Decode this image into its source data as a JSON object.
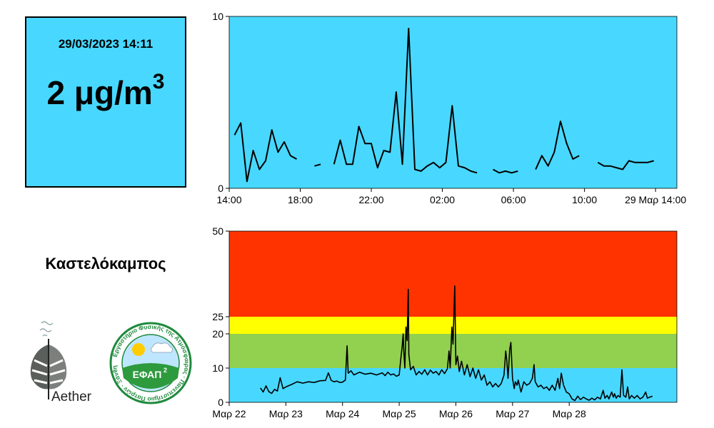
{
  "reading": {
    "timestamp": "29/03/2023 14:11",
    "value": "2 μg/m",
    "unit_exponent": "3"
  },
  "station": "Καστελόκαμπος",
  "logos": {
    "aether": "Aether",
    "efap": "ΕΦΑΠ",
    "efap_exponent": "2",
    "efap_ring_text": "Εργαστήριο Φυσικής της Ατμόσφαιρας · Πανεπιστήμιο Πατρών · Ξάνθη"
  },
  "colors": {
    "plot_bg": "#48d8ff",
    "line": "#000000",
    "band_good": "#48d8ff",
    "band_fair": "#92d050",
    "band_moderate": "#ffff00",
    "band_poor": "#ff3300"
  },
  "chart_data": [
    {
      "type": "line",
      "title": "",
      "xlabel": "",
      "ylabel": "",
      "x_unit": "hours since 28/03 14:00",
      "xlim": [
        0,
        25.2
      ],
      "ylim": [
        0,
        10
      ],
      "y_ticks": [
        "0",
        "10"
      ],
      "x_ticks": [
        {
          "x": 0,
          "label": "14:00"
        },
        {
          "x": 4,
          "label": "18:00"
        },
        {
          "x": 8,
          "label": "22:00"
        },
        {
          "x": 12,
          "label": "02:00"
        },
        {
          "x": 16,
          "label": "06:00"
        },
        {
          "x": 20,
          "label": "10:00"
        },
        {
          "x": 24,
          "label": "29 Μαρ 14:00"
        }
      ],
      "series": [
        {
          "segments": [
            [
              [
                0.3,
                3.1
              ],
              [
                0.65,
                3.8
              ],
              [
                1.0,
                0.4
              ],
              [
                1.35,
                2.2
              ],
              [
                1.7,
                1.1
              ],
              [
                2.05,
                1.6
              ],
              [
                2.4,
                3.4
              ],
              [
                2.75,
                2.1
              ],
              [
                3.1,
                2.7
              ],
              [
                3.45,
                1.9
              ],
              [
                3.8,
                1.7
              ]
            ],
            [
              [
                4.8,
                1.3
              ],
              [
                5.15,
                1.4
              ]
            ],
            [
              [
                5.9,
                1.4
              ],
              [
                6.25,
                2.8
              ],
              [
                6.6,
                1.4
              ],
              [
                6.95,
                1.4
              ],
              [
                7.3,
                3.6
              ],
              [
                7.65,
                2.6
              ],
              [
                8.0,
                2.6
              ],
              [
                8.35,
                1.2
              ],
              [
                8.7,
                2.2
              ],
              [
                9.05,
                2.1
              ],
              [
                9.4,
                5.6
              ],
              [
                9.75,
                1.4
              ],
              [
                10.1,
                9.3
              ],
              [
                10.45,
                1.1
              ],
              [
                10.8,
                1.0
              ],
              [
                11.15,
                1.3
              ],
              [
                11.5,
                1.5
              ],
              [
                11.85,
                1.2
              ],
              [
                12.2,
                1.5
              ],
              [
                12.55,
                4.8
              ],
              [
                12.9,
                1.3
              ],
              [
                13.25,
                1.2
              ],
              [
                13.6,
                1.0
              ],
              [
                13.95,
                0.9
              ]
            ],
            [
              [
                14.85,
                1.1
              ],
              [
                15.2,
                0.9
              ],
              [
                15.55,
                1.0
              ],
              [
                15.9,
                0.9
              ],
              [
                16.25,
                1.0
              ]
            ],
            [
              [
                17.25,
                1.1
              ],
              [
                17.6,
                1.9
              ],
              [
                17.95,
                1.3
              ],
              [
                18.3,
                2.1
              ],
              [
                18.65,
                3.9
              ],
              [
                19.0,
                2.6
              ],
              [
                19.35,
                1.7
              ],
              [
                19.7,
                1.9
              ]
            ],
            [
              [
                20.75,
                1.5
              ],
              [
                21.1,
                1.3
              ],
              [
                21.45,
                1.3
              ],
              [
                21.8,
                1.2
              ],
              [
                22.15,
                1.1
              ],
              [
                22.5,
                1.6
              ],
              [
                22.85,
                1.5
              ],
              [
                23.2,
                1.5
              ],
              [
                23.55,
                1.5
              ],
              [
                23.9,
                1.6
              ]
            ]
          ]
        }
      ]
    },
    {
      "type": "line",
      "title": "",
      "xlabel": "",
      "ylabel": "",
      "x_unit": "days since Μαρ 22 00:00",
      "xlim": [
        0,
        7.9
      ],
      "ylim": [
        0,
        50
      ],
      "y_ticks": [
        0,
        10,
        20,
        25,
        50
      ],
      "x_ticks": [
        {
          "x": 0,
          "label": "Μαρ 22"
        },
        {
          "x": 1,
          "label": "Μαρ 23"
        },
        {
          "x": 2,
          "label": "Μαρ 24"
        },
        {
          "x": 3,
          "label": "Μαρ 25"
        },
        {
          "x": 4,
          "label": "Μαρ 26"
        },
        {
          "x": 5,
          "label": "Μαρ 27"
        },
        {
          "x": 6,
          "label": "Μαρ 28"
        }
      ],
      "bands": [
        {
          "from": 0,
          "to": 10,
          "color": "#48d8ff"
        },
        {
          "from": 10,
          "to": 20,
          "color": "#92d050"
        },
        {
          "from": 20,
          "to": 25,
          "color": "#ffff00"
        },
        {
          "from": 25,
          "to": 50,
          "color": "#ff3300"
        }
      ],
      "series": [
        {
          "values_xy": [
            [
              0.55,
              4.2
            ],
            [
              0.6,
              3.0
            ],
            [
              0.65,
              4.8
            ],
            [
              0.7,
              3.1
            ],
            [
              0.75,
              2.6
            ],
            [
              0.8,
              3.8
            ],
            [
              0.85,
              3.3
            ],
            [
              0.9,
              7.2
            ],
            [
              0.95,
              4.0
            ],
            [
              1.0,
              4.5
            ],
            [
              1.1,
              5.2
            ],
            [
              1.2,
              6.0
            ],
            [
              1.3,
              5.6
            ],
            [
              1.4,
              6.0
            ],
            [
              1.5,
              5.8
            ],
            [
              1.6,
              6.3
            ],
            [
              1.7,
              6.4
            ],
            [
              1.75,
              8.6
            ],
            [
              1.8,
              6.4
            ],
            [
              1.85,
              6.0
            ],
            [
              1.9,
              6.2
            ],
            [
              1.95,
              5.8
            ],
            [
              2.0,
              5.9
            ],
            [
              2.05,
              6.5
            ],
            [
              2.08,
              16.5
            ],
            [
              2.1,
              8.5
            ],
            [
              2.15,
              9.2
            ],
            [
              2.2,
              8.0
            ],
            [
              2.3,
              8.8
            ],
            [
              2.4,
              8.2
            ],
            [
              2.5,
              8.5
            ],
            [
              2.6,
              8.0
            ],
            [
              2.7,
              8.6
            ],
            [
              2.75,
              7.8
            ],
            [
              2.8,
              8.8
            ],
            [
              2.85,
              8.0
            ],
            [
              2.9,
              8.3
            ],
            [
              2.95,
              7.6
            ],
            [
              3.0,
              8.0
            ],
            [
              3.03,
              13.0
            ],
            [
              3.05,
              16.0
            ],
            [
              3.07,
              20.0
            ],
            [
              3.08,
              15.0
            ],
            [
              3.1,
              10.0
            ],
            [
              3.12,
              22.0
            ],
            [
              3.14,
              18.0
            ],
            [
              3.16,
              33.0
            ],
            [
              3.17,
              14.0
            ],
            [
              3.2,
              9.5
            ],
            [
              3.25,
              10.5
            ],
            [
              3.3,
              8.0
            ],
            [
              3.35,
              9.0
            ],
            [
              3.4,
              8.2
            ],
            [
              3.45,
              9.5
            ],
            [
              3.5,
              8.0
            ],
            [
              3.55,
              9.4
            ],
            [
              3.6,
              8.5
            ],
            [
              3.65,
              9.0
            ],
            [
              3.7,
              8.0
            ],
            [
              3.75,
              9.5
            ],
            [
              3.8,
              8.4
            ],
            [
              3.85,
              9.8
            ],
            [
              3.88,
              15.0
            ],
            [
              3.9,
              10.0
            ],
            [
              3.93,
              22.0
            ],
            [
              3.95,
              17.0
            ],
            [
              3.98,
              34.0
            ],
            [
              4.0,
              11.0
            ],
            [
              4.03,
              13.5
            ],
            [
              4.06,
              9.0
            ],
            [
              4.1,
              12.0
            ],
            [
              4.15,
              8.0
            ],
            [
              4.2,
              11.0
            ],
            [
              4.25,
              7.5
            ],
            [
              4.3,
              10.0
            ],
            [
              4.35,
              7.0
            ],
            [
              4.4,
              9.5
            ],
            [
              4.45,
              6.5
            ],
            [
              4.5,
              8.0
            ],
            [
              4.55,
              5.0
            ],
            [
              4.6,
              6.0
            ],
            [
              4.65,
              4.5
            ],
            [
              4.7,
              5.5
            ],
            [
              4.75,
              4.5
            ],
            [
              4.8,
              5.5
            ],
            [
              4.85,
              8.0
            ],
            [
              4.88,
              15.0
            ],
            [
              4.9,
              12.0
            ],
            [
              4.92,
              7.0
            ],
            [
              4.95,
              15.5
            ],
            [
              4.97,
              17.5
            ],
            [
              5.0,
              7.0
            ],
            [
              5.03,
              4.0
            ],
            [
              5.05,
              6.0
            ],
            [
              5.08,
              5.0
            ],
            [
              5.1,
              6.5
            ],
            [
              5.15,
              3.0
            ],
            [
              5.2,
              6.0
            ],
            [
              5.25,
              5.0
            ],
            [
              5.3,
              5.5
            ],
            [
              5.35,
              7.0
            ],
            [
              5.38,
              11.0
            ],
            [
              5.4,
              6.0
            ],
            [
              5.45,
              4.5
            ],
            [
              5.5,
              5.0
            ],
            [
              5.55,
              4.0
            ],
            [
              5.6,
              4.5
            ],
            [
              5.65,
              3.5
            ],
            [
              5.7,
              5.0
            ],
            [
              5.75,
              3.5
            ],
            [
              5.8,
              7.0
            ],
            [
              5.83,
              4.0
            ],
            [
              5.86,
              8.5
            ],
            [
              5.9,
              5.0
            ],
            [
              5.95,
              3.0
            ],
            [
              6.0,
              2.5
            ],
            [
              6.05,
              1.0
            ],
            [
              6.1,
              0.5
            ],
            [
              6.15,
              1.8
            ],
            [
              6.2,
              0.8
            ],
            [
              6.25,
              1.5
            ],
            [
              6.3,
              1.0
            ],
            [
              6.35,
              0.6
            ],
            [
              6.4,
              1.2
            ],
            [
              6.45,
              0.7
            ],
            [
              6.5,
              1.5
            ],
            [
              6.55,
              1.0
            ],
            [
              6.6,
              3.5
            ],
            [
              6.63,
              1.2
            ],
            [
              6.67,
              2.0
            ],
            [
              6.7,
              1.0
            ],
            [
              6.75,
              3.0
            ],
            [
              6.78,
              1.5
            ],
            [
              6.8,
              2.5
            ],
            [
              6.83,
              1.2
            ],
            [
              6.86,
              2.0
            ],
            [
              6.9,
              1.5
            ],
            [
              6.93,
              9.5
            ],
            [
              6.96,
              2.0
            ],
            [
              7.0,
              1.5
            ],
            [
              7.03,
              4.5
            ],
            [
              7.06,
              1.0
            ],
            [
              7.1,
              2.0
            ],
            [
              7.15,
              1.2
            ],
            [
              7.2,
              2.0
            ],
            [
              7.25,
              1.0
            ],
            [
              7.3,
              1.5
            ],
            [
              7.35,
              3.0
            ],
            [
              7.38,
              1.2
            ],
            [
              7.42,
              1.5
            ],
            [
              7.47,
              1.8
            ]
          ]
        }
      ]
    }
  ]
}
